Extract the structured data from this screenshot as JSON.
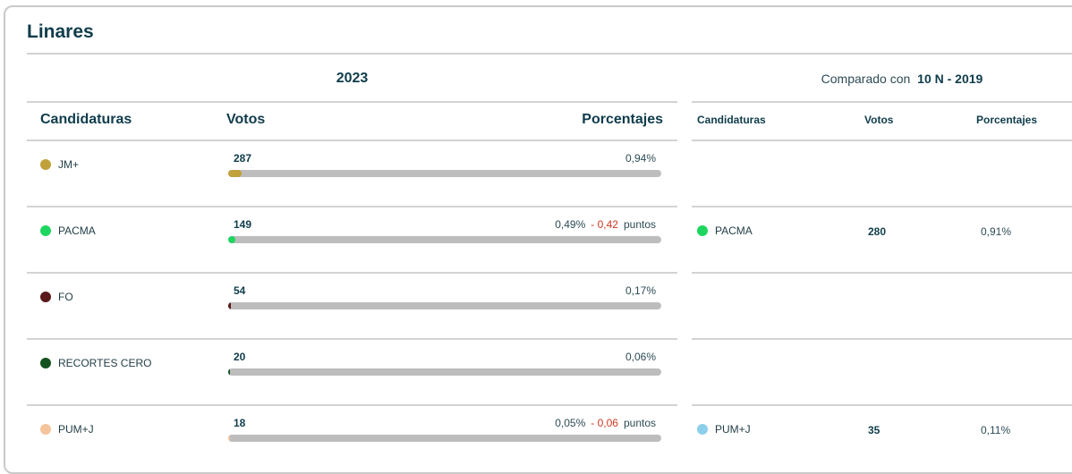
{
  "panel": {
    "title": "Linares",
    "current_label": "2023",
    "compare_prefix": "Comparado con",
    "compare_target": "10 N - 2019"
  },
  "columns": {
    "party": "Candidaturas",
    "votes": "Votos",
    "pct": "Porcentajes"
  },
  "rows": [
    {
      "party": "JM+",
      "color": "#c0a13a",
      "votes": "287",
      "pct": "0,94%",
      "pct_value": 0.94,
      "delta": "",
      "delta_unit": "",
      "prev": null
    },
    {
      "party": "PACMA",
      "color": "#1ed65f",
      "votes": "149",
      "pct": "0,49%",
      "pct_value": 0.49,
      "delta": "- 0,42",
      "delta_unit": "puntos",
      "prev": {
        "party": "PACMA",
        "color": "#1ed65f",
        "votes": "280",
        "pct": "0,91%"
      }
    },
    {
      "party": "FO",
      "color": "#5a1a1a",
      "votes": "54",
      "pct": "0,17%",
      "pct_value": 0.17,
      "delta": "",
      "delta_unit": "",
      "prev": null
    },
    {
      "party": "RECORTES CERO",
      "color": "#14531f",
      "votes": "20",
      "pct": "0,06%",
      "pct_value": 0.06,
      "delta": "",
      "delta_unit": "",
      "prev": null
    },
    {
      "party": "PUM+J",
      "color": "#f5c49d",
      "votes": "18",
      "pct": "0,05%",
      "pct_value": 0.05,
      "delta": "- 0,06",
      "delta_unit": "puntos",
      "prev": {
        "party": "PUM+J",
        "color": "#8ccfea",
        "votes": "35",
        "pct": "0,11%"
      }
    }
  ]
}
